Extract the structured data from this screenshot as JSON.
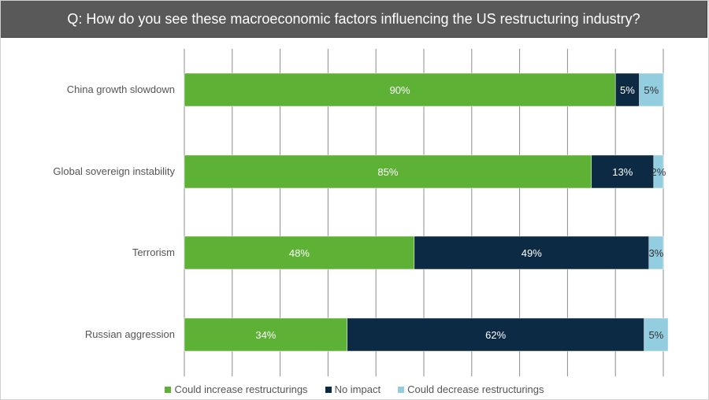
{
  "header": {
    "question": "Q: How do you see these macroeconomic factors influencing the US restructuring industry?"
  },
  "colors": {
    "increase": "#5db235",
    "noimpact": "#0c2a44",
    "decrease": "#93cde0",
    "grid": "#8c8c8c"
  },
  "chart_data": {
    "type": "bar",
    "orientation": "horizontal",
    "stacked": true,
    "title": "Q: How do you see these macroeconomic factors influencing the US restructuring industry?",
    "categories": [
      "China growth slowdown",
      "Global sovereign instability",
      "Terrorism",
      "Russian aggression"
    ],
    "series": [
      {
        "name": "Could increase restructurings",
        "values": [
          90,
          85,
          48,
          34
        ],
        "labels": [
          "90%",
          "85%",
          "48%",
          "34%"
        ]
      },
      {
        "name": "No impact",
        "values": [
          5,
          13,
          49,
          62
        ],
        "labels": [
          "5%",
          "13%",
          "49%",
          "62%"
        ]
      },
      {
        "name": "Could decrease restructurings",
        "values": [
          5,
          2,
          3,
          5
        ],
        "labels": [
          "5%",
          "2%",
          "3%",
          "5%"
        ]
      }
    ],
    "xlim": [
      0,
      100
    ],
    "grid": true,
    "legend": "bottom"
  }
}
